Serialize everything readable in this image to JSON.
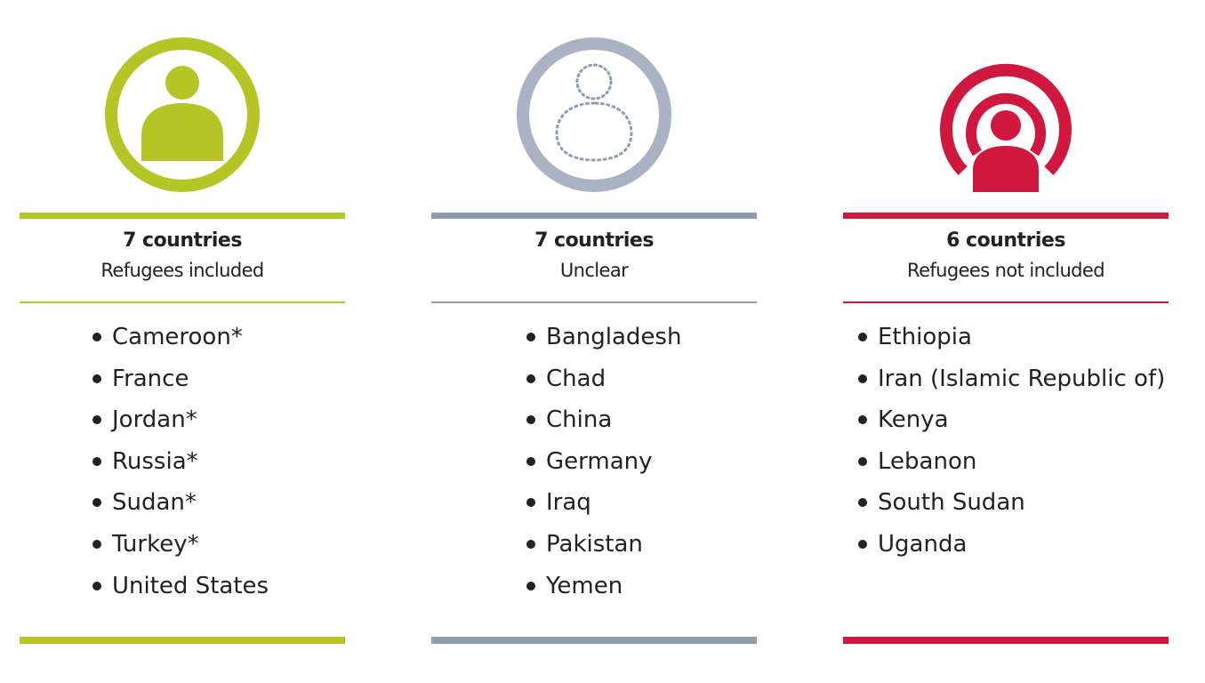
{
  "colors": {
    "included": "#b5c526",
    "unclear": "#8d9cb1",
    "unclear_ring": "#a9b3c3",
    "not_included": "#d0173e"
  },
  "columns": [
    {
      "icon": "person-in-circle-icon",
      "count": "7 countries",
      "label": "Refugees included",
      "countries": [
        "Cameroon*",
        "France",
        "Jordan*",
        "Russia*",
        "Sudan*",
        "Turkey*",
        "United States"
      ]
    },
    {
      "icon": "dotted-person-in-circle-icon",
      "count": "7 countries",
      "label": "Unclear",
      "countries": [
        "Bangladesh",
        "Chad",
        "China",
        "Germany",
        "Iraq",
        "Pakistan",
        "Yemen"
      ]
    },
    {
      "icon": "person-outside-open-circle-icon",
      "count": "6 countries",
      "label": "Refugees not included",
      "countries": [
        "Ethiopia",
        "Iran (Islamic Republic of)",
        "Kenya",
        "Lebanon",
        "South Sudan",
        "Uganda"
      ]
    }
  ]
}
